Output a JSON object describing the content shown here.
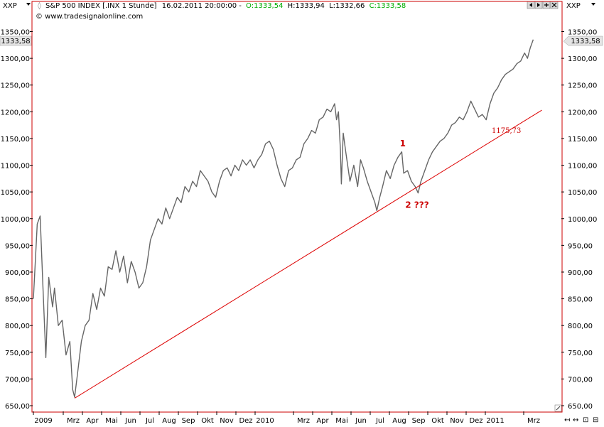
{
  "header": {
    "symbol_left": "XXP",
    "symbol_right": "XXP",
    "instrument": "S&P 500 INDEX [.INX  1 Stunde]",
    "datetime": "16.02.2011 20:00:00 -",
    "open": "O:1333,54",
    "high": "H:1333,94",
    "low": "L:1332,66",
    "close": "C:1333,58",
    "copyright": "© www.tradesignalonline.com"
  },
  "colors": {
    "frame": "#cc0000",
    "price": "#666666",
    "trendline": "#dd0000",
    "annotation": "#cc0000",
    "close_green": "#00aa00",
    "open_green": "#00aa00",
    "high_black": "#000000"
  },
  "price_badge": {
    "left": "1333,58",
    "right": "1333,58"
  },
  "chart_data": {
    "type": "line",
    "title": "S&P 500 INDEX [.INX  1 Stunde]",
    "y_axis": {
      "range": [
        640,
        1365
      ],
      "ticks": [
        "650,00",
        "700,00",
        "750,00",
        "800,00",
        "850,00",
        "900,00",
        "950,00",
        "1000,00",
        "1050,00",
        "1100,00",
        "1150,00",
        "1200,00",
        "1250,00",
        "1300,00",
        "1350,00"
      ],
      "tick_values": [
        650,
        700,
        750,
        800,
        850,
        900,
        950,
        1000,
        1050,
        1100,
        1150,
        1200,
        1250,
        1300,
        1350
      ]
    },
    "x_axis": {
      "labels": [
        "2009",
        "Mrz",
        "Apr",
        "Mai",
        "Jun",
        "Jul",
        "Aug",
        "Sep",
        "Okt",
        "Nov",
        "Dez",
        "2010",
        "Mrz",
        "Apr",
        "Mai",
        "Jun",
        "Jul",
        "Aug",
        "Sep",
        "Okt",
        "Nov",
        "Dez",
        "2011",
        "Mrz"
      ],
      "label_months": [
        0,
        2,
        3,
        4,
        5,
        6,
        7,
        8,
        9,
        10,
        11,
        12,
        14,
        15,
        16,
        17,
        18,
        19,
        20,
        21,
        22,
        23,
        24,
        26
      ]
    },
    "series": [
      {
        "name": "S&P 500",
        "points": [
          [
            0.0,
            850
          ],
          [
            0.2,
            990
          ],
          [
            0.35,
            1005
          ],
          [
            0.5,
            870
          ],
          [
            0.65,
            740
          ],
          [
            0.8,
            890
          ],
          [
            1.0,
            835
          ],
          [
            1.1,
            870
          ],
          [
            1.3,
            800
          ],
          [
            1.5,
            810
          ],
          [
            1.7,
            745
          ],
          [
            1.9,
            770
          ],
          [
            2.05,
            680
          ],
          [
            2.15,
            666
          ],
          [
            2.3,
            710
          ],
          [
            2.5,
            770
          ],
          [
            2.7,
            800
          ],
          [
            2.9,
            810
          ],
          [
            3.1,
            860
          ],
          [
            3.3,
            830
          ],
          [
            3.5,
            870
          ],
          [
            3.7,
            855
          ],
          [
            3.9,
            910
          ],
          [
            4.1,
            905
          ],
          [
            4.3,
            940
          ],
          [
            4.5,
            900
          ],
          [
            4.7,
            930
          ],
          [
            4.9,
            880
          ],
          [
            5.1,
            920
          ],
          [
            5.3,
            900
          ],
          [
            5.5,
            870
          ],
          [
            5.7,
            880
          ],
          [
            5.9,
            910
          ],
          [
            6.1,
            960
          ],
          [
            6.3,
            980
          ],
          [
            6.5,
            1000
          ],
          [
            6.7,
            990
          ],
          [
            6.9,
            1020
          ],
          [
            7.1,
            1000
          ],
          [
            7.3,
            1020
          ],
          [
            7.5,
            1040
          ],
          [
            7.7,
            1030
          ],
          [
            7.9,
            1060
          ],
          [
            8.1,
            1050
          ],
          [
            8.3,
            1070
          ],
          [
            8.5,
            1060
          ],
          [
            8.7,
            1090
          ],
          [
            8.9,
            1080
          ],
          [
            9.1,
            1070
          ],
          [
            9.3,
            1050
          ],
          [
            9.5,
            1040
          ],
          [
            9.7,
            1070
          ],
          [
            9.9,
            1090
          ],
          [
            10.1,
            1095
          ],
          [
            10.3,
            1080
          ],
          [
            10.5,
            1100
          ],
          [
            10.7,
            1090
          ],
          [
            10.9,
            1110
          ],
          [
            11.1,
            1100
          ],
          [
            11.3,
            1110
          ],
          [
            11.5,
            1095
          ],
          [
            11.7,
            1110
          ],
          [
            11.9,
            1120
          ],
          [
            12.1,
            1140
          ],
          [
            12.3,
            1145
          ],
          [
            12.5,
            1130
          ],
          [
            12.7,
            1100
          ],
          [
            12.9,
            1075
          ],
          [
            13.1,
            1060
          ],
          [
            13.3,
            1090
          ],
          [
            13.5,
            1095
          ],
          [
            13.7,
            1110
          ],
          [
            13.9,
            1115
          ],
          [
            14.1,
            1140
          ],
          [
            14.3,
            1150
          ],
          [
            14.5,
            1165
          ],
          [
            14.7,
            1160
          ],
          [
            14.9,
            1185
          ],
          [
            15.1,
            1190
          ],
          [
            15.3,
            1205
          ],
          [
            15.5,
            1200
          ],
          [
            15.7,
            1215
          ],
          [
            15.8,
            1185
          ],
          [
            15.9,
            1200
          ],
          [
            16.0,
            1130
          ],
          [
            16.05,
            1065
          ],
          [
            16.15,
            1160
          ],
          [
            16.3,
            1120
          ],
          [
            16.5,
            1070
          ],
          [
            16.7,
            1100
          ],
          [
            16.9,
            1060
          ],
          [
            17.05,
            1110
          ],
          [
            17.2,
            1095
          ],
          [
            17.4,
            1070
          ],
          [
            17.6,
            1050
          ],
          [
            17.8,
            1030
          ],
          [
            17.9,
            1015
          ],
          [
            18.05,
            1040
          ],
          [
            18.2,
            1060
          ],
          [
            18.4,
            1090
          ],
          [
            18.6,
            1075
          ],
          [
            18.8,
            1100
          ],
          [
            19.0,
            1115
          ],
          [
            19.2,
            1125
          ],
          [
            19.3,
            1085
          ],
          [
            19.5,
            1090
          ],
          [
            19.7,
            1070
          ],
          [
            19.9,
            1060
          ],
          [
            20.05,
            1048
          ],
          [
            20.2,
            1070
          ],
          [
            20.4,
            1090
          ],
          [
            20.6,
            1110
          ],
          [
            20.8,
            1125
          ],
          [
            21.0,
            1135
          ],
          [
            21.2,
            1145
          ],
          [
            21.4,
            1150
          ],
          [
            21.6,
            1160
          ],
          [
            21.8,
            1175
          ],
          [
            22.0,
            1180
          ],
          [
            22.2,
            1190
          ],
          [
            22.4,
            1185
          ],
          [
            22.6,
            1200
          ],
          [
            22.8,
            1220
          ],
          [
            23.0,
            1205
          ],
          [
            23.2,
            1190
          ],
          [
            23.4,
            1195
          ],
          [
            23.6,
            1185
          ],
          [
            23.8,
            1215
          ],
          [
            24.0,
            1235
          ],
          [
            24.2,
            1245
          ],
          [
            24.4,
            1260
          ],
          [
            24.6,
            1270
          ],
          [
            24.8,
            1275
          ],
          [
            25.0,
            1280
          ],
          [
            25.2,
            1290
          ],
          [
            25.4,
            1295
          ],
          [
            25.6,
            1310
          ],
          [
            25.75,
            1300
          ],
          [
            25.9,
            1320
          ],
          [
            26.05,
            1335
          ]
        ]
      }
    ],
    "trendline": {
      "start": [
        2.15,
        664
      ],
      "end": [
        26.5,
        1203
      ],
      "label": "1175,73"
    },
    "annotations": [
      {
        "text": "1",
        "x": 19.25,
        "y": 1135
      },
      {
        "text": "2 ???",
        "x": 20.0,
        "y": 1020
      }
    ],
    "grid": false,
    "legend": "none"
  }
}
